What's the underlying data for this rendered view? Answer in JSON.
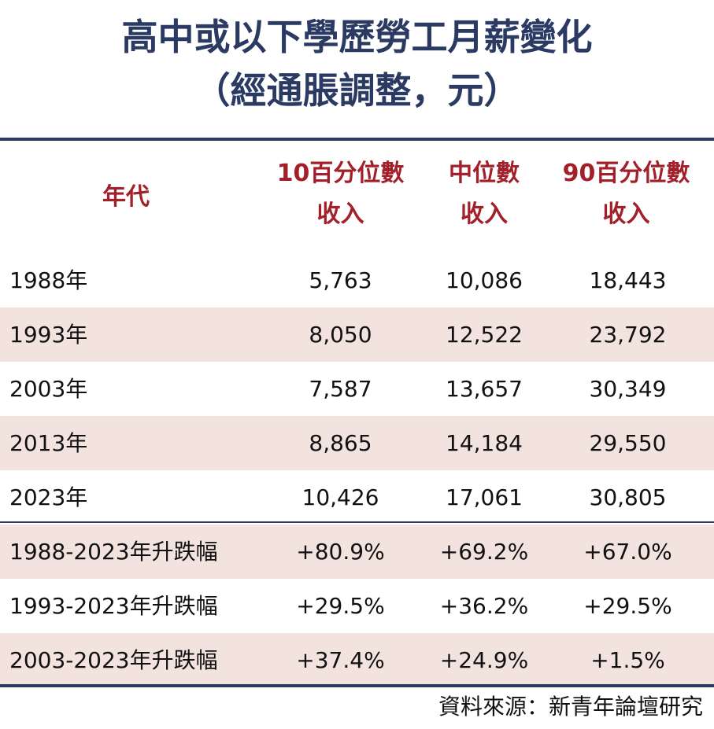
{
  "title_line1": "高中或以下學歷勞工月薪變化",
  "title_line2": "（經通脹調整，元）",
  "chart_data": {
    "type": "table",
    "columns": [
      {
        "line1": "年代",
        "line2": ""
      },
      {
        "line1": "10百分位數",
        "line2": "收入"
      },
      {
        "line1": "中位數",
        "line2": "收入"
      },
      {
        "line1": "90百分位數",
        "line2": "收入"
      }
    ],
    "rows": [
      [
        "1988年",
        "5,763",
        "10,086",
        "18,443"
      ],
      [
        "1993年",
        "8,050",
        "12,522",
        "23,792"
      ],
      [
        "2003年",
        "7,587",
        "13,657",
        "30,349"
      ],
      [
        "2013年",
        "8,865",
        "14,184",
        "29,550"
      ],
      [
        "2023年",
        "10,426",
        "17,061",
        "30,805"
      ],
      [
        "1988-2023年升跌幅",
        "+80.9%",
        "+69.2%",
        "+67.0%"
      ],
      [
        "1993-2023年升跌幅",
        "+29.5%",
        "+36.2%",
        "+29.5%"
      ],
      [
        "2003-2023年升跌幅",
        "+37.4%",
        "+24.9%",
        "+1.5%"
      ]
    ]
  },
  "source": "資料來源：新青年論壇研究",
  "colors": {
    "title": "#2b3a63",
    "header": "#a3202a",
    "shade": "#f3e3df",
    "rule": "#2b3a63"
  }
}
